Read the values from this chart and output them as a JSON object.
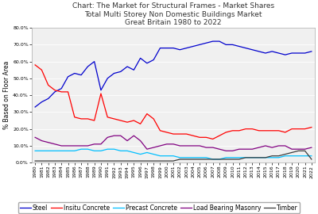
{
  "title": "Chart: The Market for Structural Frames - Market Shares\nTotal Multi Storey Non Domestic Buildings Market\nGreat Britain 1980 to 2022",
  "ylabel": "% Based on Floor Area",
  "ylim": [
    0.0,
    0.8
  ],
  "yticks": [
    0.0,
    0.1,
    0.2,
    0.3,
    0.4,
    0.5,
    0.6,
    0.7,
    0.8
  ],
  "years": [
    1980,
    1981,
    1982,
    1983,
    1984,
    1985,
    1986,
    1987,
    1988,
    1989,
    1990,
    1991,
    1992,
    1993,
    1994,
    1995,
    1996,
    1997,
    1998,
    1999,
    2000,
    2001,
    2002,
    2003,
    2004,
    2005,
    2006,
    2007,
    2008,
    2009,
    2010,
    2011,
    2012,
    2013,
    2014,
    2015,
    2016,
    2017,
    2018,
    2019,
    2020,
    2021,
    2022
  ],
  "steel": [
    0.33,
    0.36,
    0.38,
    0.42,
    0.44,
    0.51,
    0.53,
    0.52,
    0.57,
    0.6,
    0.43,
    0.5,
    0.53,
    0.54,
    0.57,
    0.55,
    0.62,
    0.59,
    0.61,
    0.68,
    0.68,
    0.68,
    0.67,
    0.68,
    0.69,
    0.7,
    0.71,
    0.72,
    0.72,
    0.7,
    0.7,
    0.69,
    0.68,
    0.67,
    0.66,
    0.65,
    0.66,
    0.65,
    0.64,
    0.65,
    0.65,
    0.65,
    0.66
  ],
  "insitu": [
    0.58,
    0.55,
    0.46,
    0.43,
    0.42,
    0.42,
    0.27,
    0.26,
    0.26,
    0.25,
    0.41,
    0.27,
    0.26,
    0.25,
    0.24,
    0.25,
    0.23,
    0.29,
    0.26,
    0.19,
    0.18,
    0.17,
    0.17,
    0.17,
    0.16,
    0.15,
    0.15,
    0.14,
    0.16,
    0.18,
    0.19,
    0.19,
    0.2,
    0.2,
    0.19,
    0.19,
    0.19,
    0.19,
    0.18,
    0.2,
    0.2,
    0.2,
    0.21
  ],
  "precast": [
    0.07,
    0.07,
    0.07,
    0.07,
    0.07,
    0.07,
    0.07,
    0.08,
    0.08,
    0.07,
    0.07,
    0.08,
    0.08,
    0.07,
    0.07,
    0.06,
    0.05,
    0.06,
    0.05,
    0.04,
    0.04,
    0.04,
    0.03,
    0.03,
    0.03,
    0.03,
    0.03,
    0.02,
    0.02,
    0.03,
    0.03,
    0.03,
    0.03,
    0.03,
    0.03,
    0.03,
    0.03,
    0.03,
    0.04,
    0.04,
    0.04,
    0.04,
    0.04
  ],
  "masonry": [
    0.15,
    0.13,
    0.12,
    0.11,
    0.1,
    0.1,
    0.1,
    0.1,
    0.1,
    0.11,
    0.11,
    0.15,
    0.16,
    0.16,
    0.13,
    0.16,
    0.13,
    0.08,
    0.09,
    0.1,
    0.11,
    0.11,
    0.1,
    0.1,
    0.1,
    0.1,
    0.09,
    0.09,
    0.08,
    0.07,
    0.07,
    0.08,
    0.08,
    0.08,
    0.09,
    0.1,
    0.09,
    0.1,
    0.1,
    0.08,
    0.08,
    0.08,
    0.09
  ],
  "timber": [
    0.01,
    0.01,
    0.01,
    0.01,
    0.01,
    0.01,
    0.01,
    0.01,
    0.01,
    0.01,
    0.01,
    0.01,
    0.01,
    0.01,
    0.01,
    0.01,
    0.01,
    0.01,
    0.01,
    0.01,
    0.01,
    0.01,
    0.02,
    0.02,
    0.02,
    0.02,
    0.02,
    0.02,
    0.02,
    0.02,
    0.02,
    0.02,
    0.03,
    0.03,
    0.03,
    0.03,
    0.04,
    0.04,
    0.05,
    0.06,
    0.07,
    0.07,
    0.02
  ],
  "steel_color": "#0000CD",
  "insitu_color": "#FF0000",
  "precast_color": "#00BFFF",
  "masonry_color": "#800080",
  "timber_color": "#3a3a3a",
  "bg_color": "#E8E8E8",
  "plot_bg": "#f0f0f0",
  "title_fontsize": 6.5,
  "label_fontsize": 5.5,
  "tick_fontsize": 4.5,
  "legend_fontsize": 5.5
}
